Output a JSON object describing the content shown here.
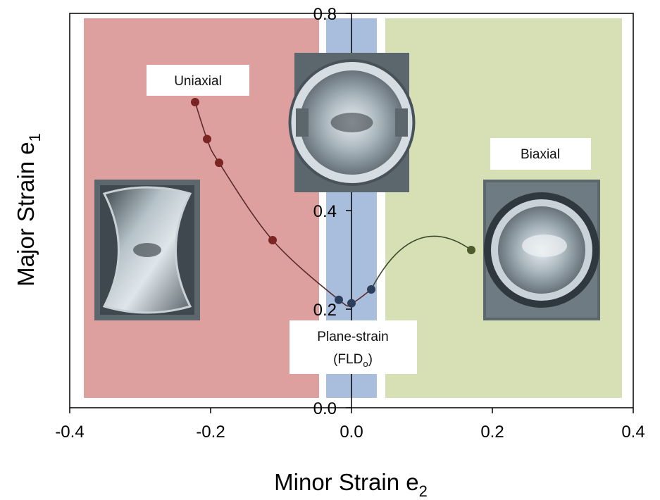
{
  "chart_data": {
    "type": "scatter",
    "title": "",
    "xlabel": "Minor Strain e",
    "xlabel_sub": "2",
    "ylabel": "Major Strain e",
    "ylabel_sub": "1",
    "xlim": [
      -0.4,
      0.4
    ],
    "ylim": [
      0.0,
      0.8
    ],
    "x_ticks": [
      "-0.4",
      "-0.2",
      "0.0",
      "0.2",
      "0.4"
    ],
    "y_ticks": [
      "0.0",
      "0.2",
      "0.4",
      "0.8"
    ],
    "x_tick_values": [
      -0.4,
      -0.2,
      0.0,
      0.2,
      0.4
    ],
    "y_tick_values": [
      0.0,
      0.2,
      0.4,
      0.8
    ],
    "grid": false,
    "regions": [
      {
        "name": "uniaxial-region",
        "x_range": [
          -0.38,
          -0.046
        ],
        "y_range": [
          0.02,
          0.79
        ],
        "color": "#dda09f"
      },
      {
        "name": "plane-strain-region",
        "x_range": [
          -0.036,
          0.036
        ],
        "y_range": [
          0.02,
          0.79
        ],
        "color": "#a8bedc"
      },
      {
        "name": "biaxial-region",
        "x_range": [
          0.048,
          0.384
        ],
        "y_range": [
          0.02,
          0.79
        ],
        "color": "#d6e0b4"
      }
    ],
    "series": [
      {
        "points": [
          {
            "x": -0.222,
            "y": 0.62,
            "color": "#7a2424"
          },
          {
            "x": -0.205,
            "y": 0.545,
            "color": "#7a2424"
          },
          {
            "x": -0.188,
            "y": 0.497,
            "color": "#7a2424"
          },
          {
            "x": -0.112,
            "y": 0.34,
            "color": "#7a2424"
          },
          {
            "x": -0.018,
            "y": 0.219,
            "color": "#2c3e5c"
          },
          {
            "x": 0.0,
            "y": 0.212,
            "color": "#2c3e5c"
          },
          {
            "x": 0.028,
            "y": 0.24,
            "color": "#2c3e5c"
          },
          {
            "x": 0.17,
            "y": 0.32,
            "color": "#4e5c2c"
          }
        ]
      }
    ],
    "annotations": [
      {
        "key": "uniaxial",
        "text": "Uniaxial"
      },
      {
        "key": "biaxial",
        "text": "Biaxial"
      },
      {
        "key": "plane_strain",
        "text": "Plane-strain",
        "line2_prefix": "(FLD",
        "line2_sub": "o",
        "line2_suffix": ")"
      }
    ],
    "images": [
      {
        "key": "uniaxial-specimen",
        "shape": "hourglass"
      },
      {
        "key": "plane-strain-specimen",
        "shape": "notched"
      },
      {
        "key": "biaxial-specimen",
        "shape": "circular"
      }
    ],
    "colors": {
      "curve": "#5a2a2a",
      "curve_right": "#3c4a2c",
      "axis": "#000000"
    }
  }
}
